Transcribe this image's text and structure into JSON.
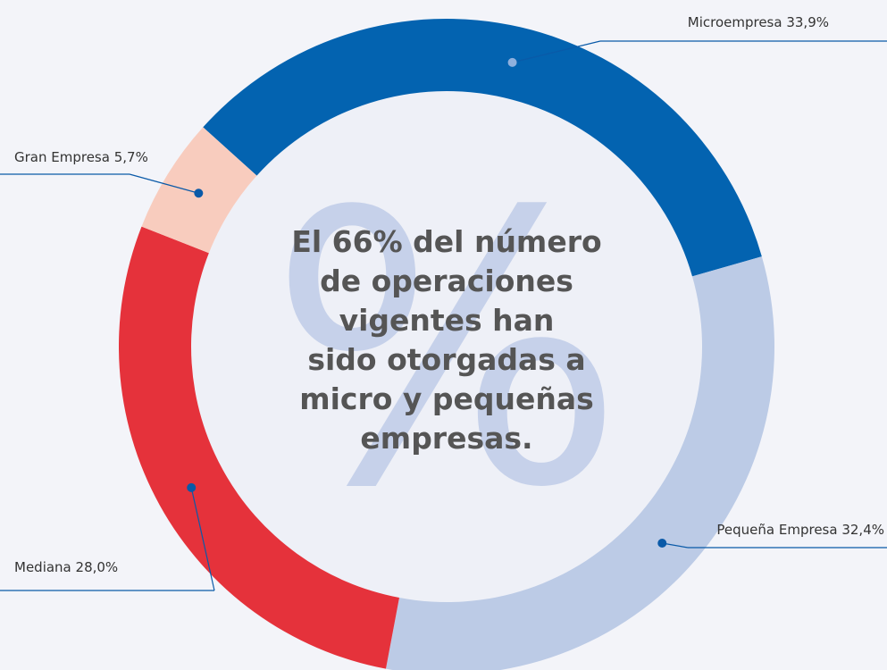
{
  "chart_data": {
    "type": "donut",
    "categories": [
      "Microempresa",
      "Pequeña Empresa",
      "Mediana",
      "Gran Empresa"
    ],
    "values": [
      33.9,
      32.4,
      28.0,
      5.7
    ],
    "value_labels": [
      "33,9%",
      "32,4%",
      "28,0%",
      "5,7%"
    ],
    "colors": [
      "#0363b0",
      "#bccbe6",
      "#e5323b",
      "#f8ccbe"
    ],
    "watermark": "%",
    "center_text": [
      "El 66% del número",
      "de operaciones",
      "vigentes han",
      "sido otorgadas a",
      "micro y pequeñas",
      "empresas."
    ]
  }
}
